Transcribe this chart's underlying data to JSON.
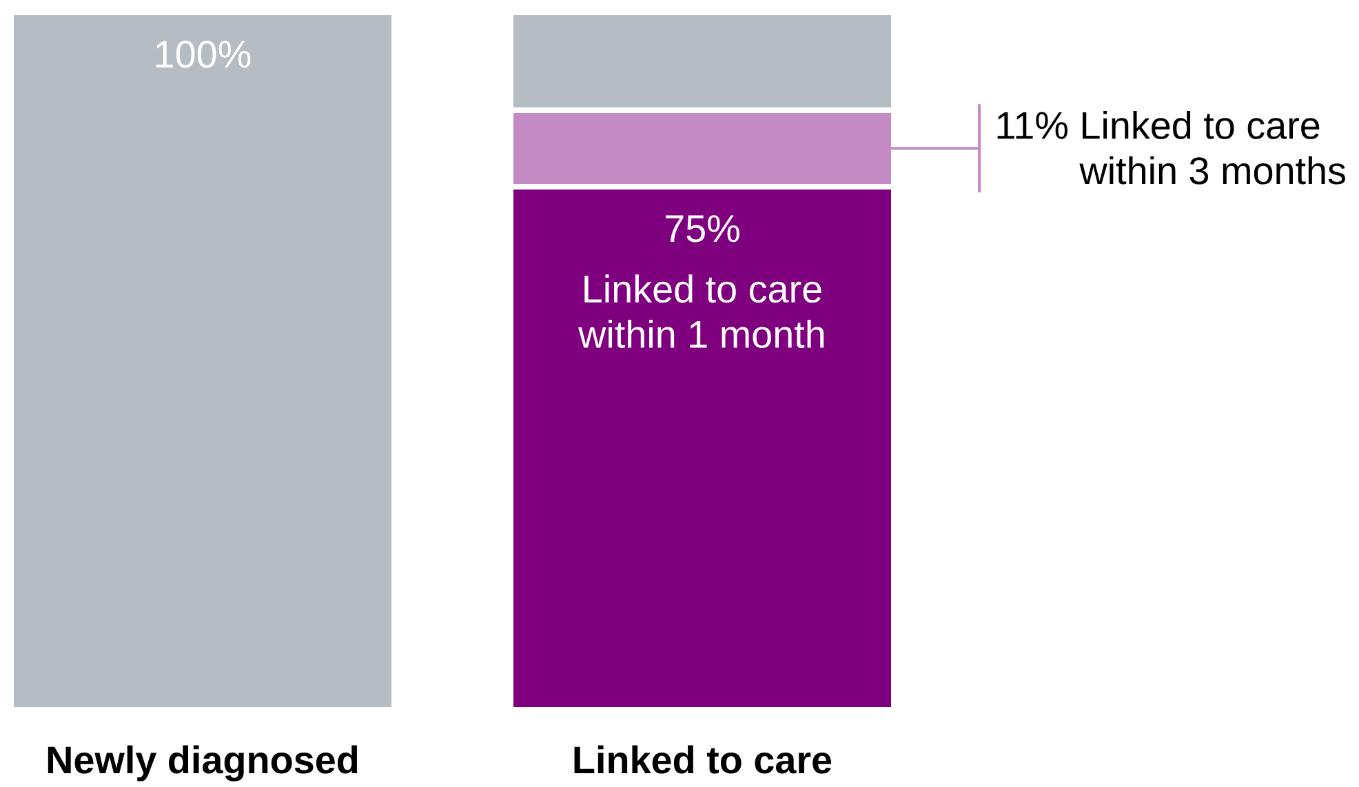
{
  "chart_data": {
    "type": "bar",
    "stacked": true,
    "categories": [
      "Newly diagnosed",
      "Linked to care"
    ],
    "series": [
      {
        "name": "Linked to care within 1 month",
        "color": "#7f007f",
        "values": [
          null,
          75
        ],
        "value_labels": [
          null,
          "75%"
        ]
      },
      {
        "color": "#c38ac4",
        "values": [
          null,
          11
        ],
        "value_labels": [
          null,
          "11%"
        ]
      },
      {
        "color": "#b5bcc4",
        "values": [
          100,
          14
        ],
        "value_labels": [
          "100%",
          null
        ]
      }
    ],
    "annotations": [
      "Linked to care within 3 months"
    ],
    "ylim": [
      0,
      100
    ],
    "tick_labels": "x"
  }
}
